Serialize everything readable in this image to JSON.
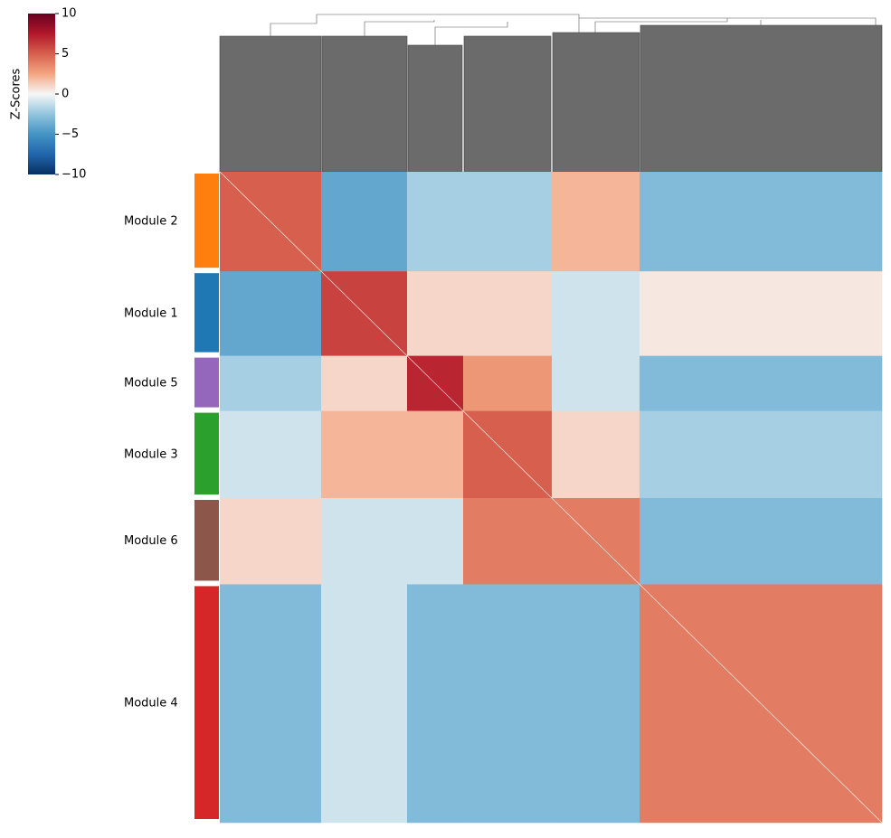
{
  "chart_data": {
    "type": "heatmap",
    "colorbar_label": "Z-Scores",
    "zlim": [
      -10,
      10
    ],
    "zticks": [
      10,
      5,
      0,
      {
        "value": -5,
        "label": "−5"
      },
      {
        "value": -10,
        "label": "−10"
      }
    ],
    "categories": [
      "Module 2",
      "Module 1",
      "Module 5",
      "Module 3",
      "Module 6",
      "Module 4"
    ],
    "colors": [
      "#ff7f0e",
      "#1f77b4",
      "#9467bd",
      "#2ca02c",
      "#8c564b",
      "#d62728"
    ],
    "sizes": [
      112,
      95,
      62,
      98,
      97,
      268
    ],
    "values": [
      [
        5,
        -4,
        -2,
        -2,
        2,
        -3
      ],
      [
        -4,
        6,
        1,
        1,
        -1,
        0.5
      ],
      [
        -2,
        1,
        7,
        3,
        -1,
        -3
      ],
      [
        -1,
        2,
        2,
        5,
        1,
        -2
      ],
      [
        1,
        -1,
        -1,
        4,
        4,
        -3
      ],
      [
        -3,
        -1,
        -3,
        -3,
        -3,
        4
      ]
    ]
  }
}
